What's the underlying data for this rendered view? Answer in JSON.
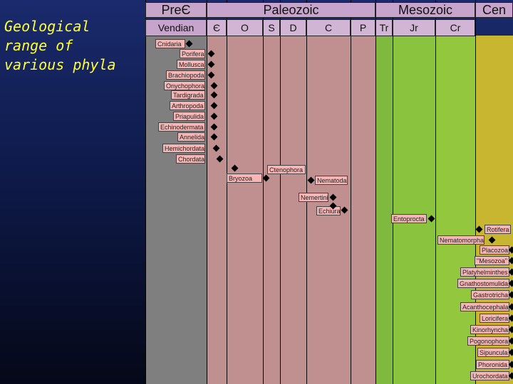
{
  "title": "Geological\nrange of\nvarious phyla",
  "eras": [
    {
      "key": "pre",
      "label": "PreЄ"
    },
    {
      "key": "pal",
      "label": "Paleozoic"
    },
    {
      "key": "mes",
      "label": "Mesozoic"
    },
    {
      "key": "cen",
      "label": "Cen"
    }
  ],
  "periods": [
    {
      "key": "vendian",
      "label": "Vendian"
    },
    {
      "key": "cambrian",
      "label": "Є"
    },
    {
      "key": "ordovician",
      "label": "O"
    },
    {
      "key": "silurian",
      "label": "S"
    },
    {
      "key": "devonian",
      "label": "D"
    },
    {
      "key": "carboniferous",
      "label": "C"
    },
    {
      "key": "permian",
      "label": "P"
    },
    {
      "key": "triassic",
      "label": "Tr"
    },
    {
      "key": "jurassic",
      "label": "Jr"
    },
    {
      "key": "cretaceous",
      "label": "Cr"
    }
  ],
  "phyla": [
    {
      "label": "Cnidaria"
    },
    {
      "label": "Porifera"
    },
    {
      "label": "Mollusca"
    },
    {
      "label": "Brachiopoda"
    },
    {
      "label": "Onychophora"
    },
    {
      "label": "Tardigrada"
    },
    {
      "label": "Arthropoda"
    },
    {
      "label": "Priapulida"
    },
    {
      "label": "Echinodermata"
    },
    {
      "label": "Annelida"
    },
    {
      "label": "Hemichordata"
    },
    {
      "label": "Chordata"
    },
    {
      "label": "Ctenophora"
    },
    {
      "label": "Bryozoa"
    },
    {
      "label": "Nematoda"
    },
    {
      "label": "Nemertini"
    },
    {
      "label": "Echiura"
    },
    {
      "label": "Entoprocta"
    },
    {
      "label": "Rotifera"
    },
    {
      "label": "Nematomorpha"
    },
    {
      "label": "Placozoa"
    },
    {
      "label": "\"Mesozoa\""
    },
    {
      "label": "Platyhelminthes"
    },
    {
      "label": "Gnathostomulida"
    },
    {
      "label": "Gastrotricha"
    },
    {
      "label": "Acanthocephala"
    },
    {
      "label": "Loricifera"
    },
    {
      "label": "Kinorhyncha"
    },
    {
      "label": "Pogonophora"
    },
    {
      "label": "Sipuncula"
    },
    {
      "label": "Phoronida"
    },
    {
      "label": "Urochordata"
    }
  ]
}
